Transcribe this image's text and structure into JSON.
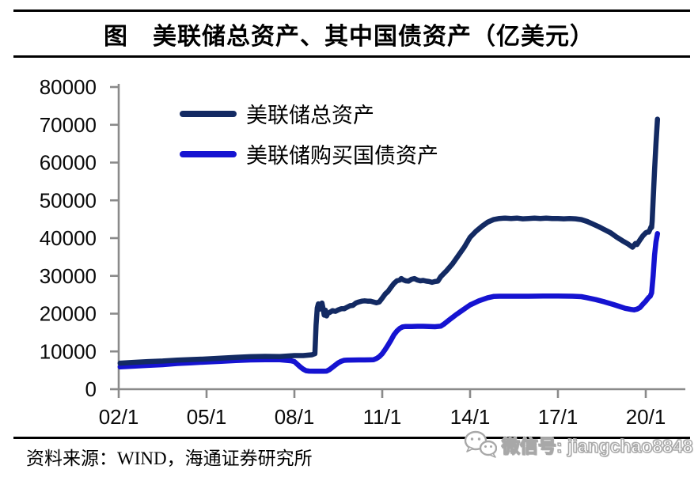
{
  "title": "图　美联储总资产、其中国债资产（亿美元）",
  "legend": {
    "items": [
      {
        "label": "美联储总资产",
        "color": "#132a63"
      },
      {
        "label": "美联储购买国债资产",
        "color": "#1513d1"
      }
    ]
  },
  "footer": {
    "source": "资料来源：WIND，海通证券研究所"
  },
  "watermark": {
    "icon": "wechat-icon",
    "text": "微信号: jiangchao8848"
  },
  "chart_data": {
    "type": "line",
    "title": "图 美联储总资产、其中国债资产（亿美元）",
    "unit": "亿美元",
    "grid": false,
    "legend_position": "upper-left-inside",
    "axis_color": "#8a8a8a",
    "x_start": 2002,
    "x_end": 2020.45,
    "ylim": [
      0,
      80000
    ],
    "yticks": [
      {
        "value": 0,
        "label": "0"
      },
      {
        "value": 10000,
        "label": "10000"
      },
      {
        "value": 20000,
        "label": "20000"
      },
      {
        "value": 30000,
        "label": "30000"
      },
      {
        "value": 40000,
        "label": "40000"
      },
      {
        "value": 50000,
        "label": "50000"
      },
      {
        "value": 60000,
        "label": "60000"
      },
      {
        "value": 70000,
        "label": "70000"
      },
      {
        "value": 80000,
        "label": "80000"
      }
    ],
    "xticks": [
      {
        "year": 2002,
        "label": "02/1"
      },
      {
        "year": 2005,
        "label": "05/1"
      },
      {
        "year": 2008,
        "label": "08/1"
      },
      {
        "year": 2011,
        "label": "11/1"
      },
      {
        "year": 2014,
        "label": "14/1"
      },
      {
        "year": 2017,
        "label": "17/1"
      },
      {
        "year": 2020,
        "label": "20/1"
      }
    ],
    "series": [
      {
        "name": "美联储购买国债资产",
        "color": "#1513d1",
        "points": [
          [
            2002.05,
            5900
          ],
          [
            2002.5,
            6100
          ],
          [
            2003.0,
            6300
          ],
          [
            2003.5,
            6500
          ],
          [
            2004.0,
            6800
          ],
          [
            2004.5,
            7000
          ],
          [
            2005.0,
            7200
          ],
          [
            2005.5,
            7400
          ],
          [
            2006.0,
            7600
          ],
          [
            2006.5,
            7750
          ],
          [
            2007.0,
            7800
          ],
          [
            2007.5,
            7800
          ],
          [
            2007.9,
            7500
          ],
          [
            2008.0,
            7300
          ],
          [
            2008.1,
            6600
          ],
          [
            2008.2,
            5900
          ],
          [
            2008.3,
            5300
          ],
          [
            2008.4,
            4900
          ],
          [
            2008.5,
            4800
          ],
          [
            2008.7,
            4750
          ],
          [
            2009.0,
            4750
          ],
          [
            2009.1,
            4800
          ],
          [
            2009.2,
            5200
          ],
          [
            2009.3,
            5800
          ],
          [
            2009.4,
            6400
          ],
          [
            2009.5,
            7000
          ],
          [
            2009.6,
            7400
          ],
          [
            2009.7,
            7650
          ],
          [
            2009.8,
            7700
          ],
          [
            2010.0,
            7720
          ],
          [
            2010.2,
            7740
          ],
          [
            2010.4,
            7750
          ],
          [
            2010.6,
            7760
          ],
          [
            2010.7,
            7800
          ],
          [
            2010.8,
            8100
          ],
          [
            2010.9,
            8600
          ],
          [
            2011.0,
            9400
          ],
          [
            2011.1,
            10500
          ],
          [
            2011.2,
            11700
          ],
          [
            2011.3,
            13000
          ],
          [
            2011.4,
            14400
          ],
          [
            2011.5,
            15400
          ],
          [
            2011.6,
            16100
          ],
          [
            2011.7,
            16500
          ],
          [
            2011.8,
            16600
          ],
          [
            2012.0,
            16600
          ],
          [
            2012.2,
            16650
          ],
          [
            2012.4,
            16650
          ],
          [
            2012.6,
            16600
          ],
          [
            2012.8,
            16550
          ],
          [
            2013.0,
            16700
          ],
          [
            2013.1,
            17200
          ],
          [
            2013.3,
            18400
          ],
          [
            2013.5,
            19600
          ],
          [
            2013.7,
            20700
          ],
          [
            2014.0,
            22300
          ],
          [
            2014.3,
            23400
          ],
          [
            2014.6,
            24200
          ],
          [
            2014.8,
            24550
          ],
          [
            2015.0,
            24600
          ],
          [
            2015.5,
            24600
          ],
          [
            2016.0,
            24600
          ],
          [
            2016.5,
            24650
          ],
          [
            2017.0,
            24650
          ],
          [
            2017.5,
            24600
          ],
          [
            2017.8,
            24500
          ],
          [
            2018.0,
            24200
          ],
          [
            2018.3,
            23700
          ],
          [
            2018.6,
            23100
          ],
          [
            2018.9,
            22400
          ],
          [
            2019.1,
            21900
          ],
          [
            2019.3,
            21400
          ],
          [
            2019.5,
            21100
          ],
          [
            2019.6,
            21000
          ],
          [
            2019.7,
            21200
          ],
          [
            2019.8,
            21600
          ],
          [
            2019.9,
            22500
          ],
          [
            2020.0,
            23300
          ],
          [
            2020.05,
            23800
          ],
          [
            2020.1,
            24300
          ],
          [
            2020.15,
            24600
          ],
          [
            2020.2,
            25500
          ],
          [
            2020.25,
            30000
          ],
          [
            2020.3,
            35500
          ],
          [
            2020.35,
            39000
          ],
          [
            2020.4,
            41200
          ]
        ]
      },
      {
        "name": "美联储总资产",
        "color": "#132a63",
        "points": [
          [
            2002.05,
            6900
          ],
          [
            2002.5,
            7100
          ],
          [
            2003.0,
            7300
          ],
          [
            2003.5,
            7450
          ],
          [
            2004.0,
            7700
          ],
          [
            2004.5,
            7850
          ],
          [
            2005.0,
            8000
          ],
          [
            2005.5,
            8200
          ],
          [
            2006.0,
            8450
          ],
          [
            2006.5,
            8600
          ],
          [
            2007.0,
            8700
          ],
          [
            2007.5,
            8650
          ],
          [
            2008.0,
            8900
          ],
          [
            2008.3,
            8900
          ],
          [
            2008.6,
            9100
          ],
          [
            2008.7,
            9400
          ],
          [
            2008.74,
            17000
          ],
          [
            2008.78,
            21500
          ],
          [
            2008.82,
            22600
          ],
          [
            2008.86,
            21200
          ],
          [
            2008.9,
            22400
          ],
          [
            2008.94,
            22800
          ],
          [
            2008.98,
            21300
          ],
          [
            2009.02,
            19600
          ],
          [
            2009.06,
            20900
          ],
          [
            2009.1,
            19400
          ],
          [
            2009.14,
            20100
          ],
          [
            2009.2,
            20300
          ],
          [
            2009.3,
            20800
          ],
          [
            2009.4,
            20600
          ],
          [
            2009.5,
            21000
          ],
          [
            2009.6,
            21300
          ],
          [
            2009.7,
            21300
          ],
          [
            2009.8,
            21700
          ],
          [
            2009.9,
            22100
          ],
          [
            2010.0,
            22200
          ],
          [
            2010.1,
            22800
          ],
          [
            2010.2,
            23100
          ],
          [
            2010.3,
            23300
          ],
          [
            2010.4,
            23400
          ],
          [
            2010.5,
            23300
          ],
          [
            2010.6,
            23300
          ],
          [
            2010.7,
            23100
          ],
          [
            2010.8,
            22900
          ],
          [
            2010.9,
            23100
          ],
          [
            2011.0,
            24100
          ],
          [
            2011.1,
            25200
          ],
          [
            2011.2,
            25900
          ],
          [
            2011.3,
            27000
          ],
          [
            2011.4,
            28000
          ],
          [
            2011.5,
            28700
          ],
          [
            2011.6,
            28900
          ],
          [
            2011.65,
            29300
          ],
          [
            2011.7,
            29000
          ],
          [
            2011.8,
            28700
          ],
          [
            2011.9,
            28600
          ],
          [
            2012.0,
            29100
          ],
          [
            2012.1,
            29300
          ],
          [
            2012.2,
            28900
          ],
          [
            2012.3,
            28700
          ],
          [
            2012.4,
            28800
          ],
          [
            2012.5,
            28600
          ],
          [
            2012.6,
            28500
          ],
          [
            2012.7,
            28300
          ],
          [
            2012.8,
            28500
          ],
          [
            2012.9,
            28600
          ],
          [
            2013.0,
            29800
          ],
          [
            2013.2,
            31400
          ],
          [
            2013.4,
            33200
          ],
          [
            2013.6,
            35400
          ],
          [
            2013.8,
            37600
          ],
          [
            2014.0,
            40200
          ],
          [
            2014.2,
            41800
          ],
          [
            2014.4,
            43100
          ],
          [
            2014.6,
            44200
          ],
          [
            2014.8,
            44900
          ],
          [
            2015.0,
            45200
          ],
          [
            2015.2,
            45300
          ],
          [
            2015.4,
            45200
          ],
          [
            2015.6,
            45300
          ],
          [
            2015.8,
            45100
          ],
          [
            2016.0,
            45200
          ],
          [
            2016.2,
            45300
          ],
          [
            2016.4,
            45200
          ],
          [
            2016.6,
            45300
          ],
          [
            2016.8,
            45200
          ],
          [
            2017.0,
            45200
          ],
          [
            2017.2,
            45100
          ],
          [
            2017.4,
            45200
          ],
          [
            2017.6,
            45100
          ],
          [
            2017.8,
            44900
          ],
          [
            2018.0,
            44400
          ],
          [
            2018.2,
            43700
          ],
          [
            2018.4,
            43000
          ],
          [
            2018.6,
            42200
          ],
          [
            2018.8,
            41400
          ],
          [
            2019.0,
            40300
          ],
          [
            2019.2,
            39300
          ],
          [
            2019.4,
            38400
          ],
          [
            2019.55,
            37600
          ],
          [
            2019.65,
            38600
          ],
          [
            2019.7,
            38300
          ],
          [
            2019.8,
            39500
          ],
          [
            2019.9,
            40600
          ],
          [
            2020.0,
            41400
          ],
          [
            2020.05,
            41600
          ],
          [
            2020.1,
            41600
          ],
          [
            2020.15,
            42400
          ],
          [
            2020.18,
            43000
          ],
          [
            2020.2,
            42800
          ],
          [
            2020.22,
            44500
          ],
          [
            2020.25,
            50000
          ],
          [
            2020.3,
            58000
          ],
          [
            2020.35,
            65000
          ],
          [
            2020.4,
            71500
          ]
        ]
      }
    ]
  }
}
